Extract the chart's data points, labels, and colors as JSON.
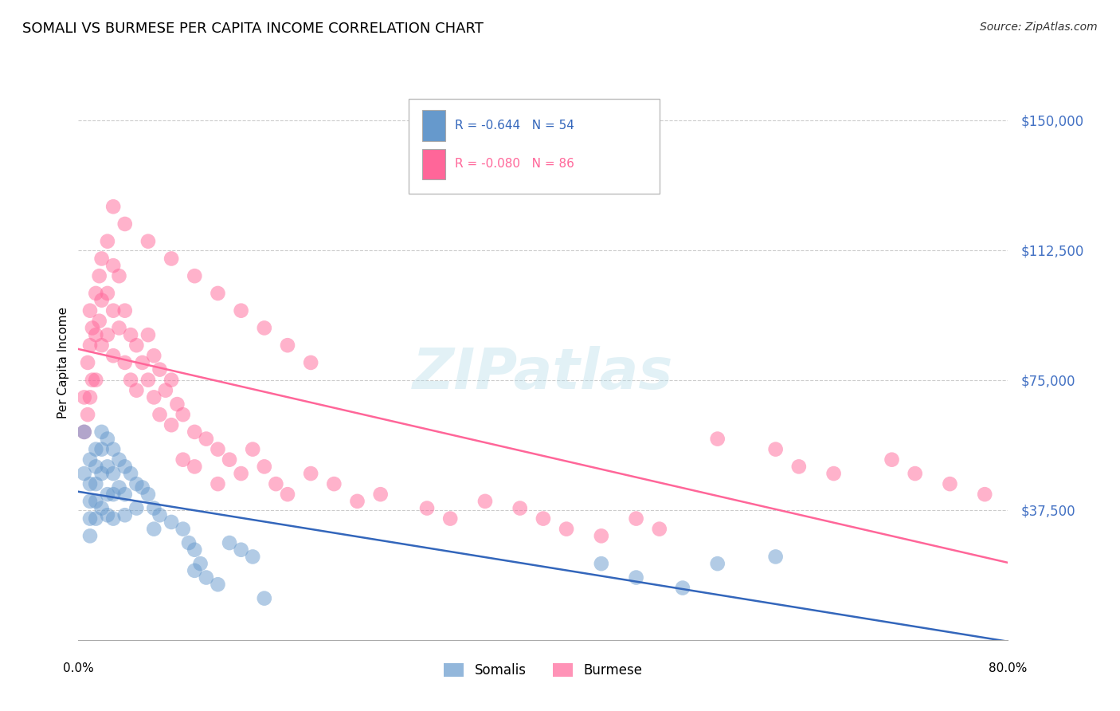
{
  "title": "SOMALI VS BURMESE PER CAPITA INCOME CORRELATION CHART",
  "source": "Source: ZipAtlas.com",
  "ylabel": "Per Capita Income",
  "yticks": [
    0,
    37500,
    75000,
    112500,
    150000
  ],
  "ytick_labels": [
    "",
    "$37,500",
    "$75,000",
    "$112,500",
    "$150,000"
  ],
  "ylim": [
    0,
    160000
  ],
  "xlim": [
    0.0,
    0.8
  ],
  "somali_color": "#6699CC",
  "burmese_color": "#FF6699",
  "somali_line_color": "#3366BB",
  "burmese_line_color": "#FF6699",
  "axis_label_color": "#4472C4",
  "grid_color": "#CCCCCC",
  "background_color": "#FFFFFF",
  "somali_x": [
    0.01,
    0.01,
    0.01,
    0.01,
    0.01,
    0.015,
    0.015,
    0.015,
    0.015,
    0.015,
    0.02,
    0.02,
    0.02,
    0.02,
    0.025,
    0.025,
    0.025,
    0.025,
    0.03,
    0.03,
    0.03,
    0.03,
    0.035,
    0.035,
    0.04,
    0.04,
    0.04,
    0.045,
    0.05,
    0.05,
    0.055,
    0.06,
    0.065,
    0.065,
    0.07,
    0.08,
    0.09,
    0.095,
    0.1,
    0.1,
    0.105,
    0.11,
    0.12,
    0.13,
    0.14,
    0.15,
    0.16,
    0.45,
    0.48,
    0.52,
    0.55,
    0.6,
    0.005,
    0.005
  ],
  "somali_y": [
    52000,
    45000,
    40000,
    35000,
    30000,
    55000,
    50000,
    45000,
    40000,
    35000,
    60000,
    55000,
    48000,
    38000,
    58000,
    50000,
    42000,
    36000,
    55000,
    48000,
    42000,
    35000,
    52000,
    44000,
    50000,
    42000,
    36000,
    48000,
    45000,
    38000,
    44000,
    42000,
    38000,
    32000,
    36000,
    34000,
    32000,
    28000,
    26000,
    20000,
    22000,
    18000,
    16000,
    28000,
    26000,
    24000,
    12000,
    22000,
    18000,
    15000,
    22000,
    24000,
    60000,
    48000
  ],
  "burmese_x": [
    0.005,
    0.005,
    0.008,
    0.008,
    0.01,
    0.01,
    0.01,
    0.012,
    0.012,
    0.015,
    0.015,
    0.015,
    0.018,
    0.018,
    0.02,
    0.02,
    0.02,
    0.025,
    0.025,
    0.025,
    0.03,
    0.03,
    0.03,
    0.035,
    0.035,
    0.04,
    0.04,
    0.045,
    0.045,
    0.05,
    0.05,
    0.055,
    0.06,
    0.06,
    0.065,
    0.065,
    0.07,
    0.07,
    0.075,
    0.08,
    0.08,
    0.085,
    0.09,
    0.09,
    0.1,
    0.1,
    0.11,
    0.12,
    0.12,
    0.13,
    0.14,
    0.15,
    0.16,
    0.17,
    0.18,
    0.2,
    0.22,
    0.24,
    0.26,
    0.3,
    0.32,
    0.35,
    0.38,
    0.4,
    0.42,
    0.45,
    0.48,
    0.5,
    0.55,
    0.6,
    0.62,
    0.65,
    0.7,
    0.72,
    0.75,
    0.78,
    0.03,
    0.04,
    0.06,
    0.08,
    0.1,
    0.12,
    0.14,
    0.16,
    0.18,
    0.2
  ],
  "burmese_y": [
    70000,
    60000,
    80000,
    65000,
    95000,
    85000,
    70000,
    90000,
    75000,
    100000,
    88000,
    75000,
    105000,
    92000,
    110000,
    98000,
    85000,
    115000,
    100000,
    88000,
    108000,
    95000,
    82000,
    105000,
    90000,
    95000,
    80000,
    88000,
    75000,
    85000,
    72000,
    80000,
    88000,
    75000,
    82000,
    70000,
    78000,
    65000,
    72000,
    75000,
    62000,
    68000,
    65000,
    52000,
    60000,
    50000,
    58000,
    55000,
    45000,
    52000,
    48000,
    55000,
    50000,
    45000,
    42000,
    48000,
    45000,
    40000,
    42000,
    38000,
    35000,
    40000,
    38000,
    35000,
    32000,
    30000,
    35000,
    32000,
    58000,
    55000,
    50000,
    48000,
    52000,
    48000,
    45000,
    42000,
    125000,
    120000,
    115000,
    110000,
    105000,
    100000,
    95000,
    90000,
    85000,
    80000
  ]
}
